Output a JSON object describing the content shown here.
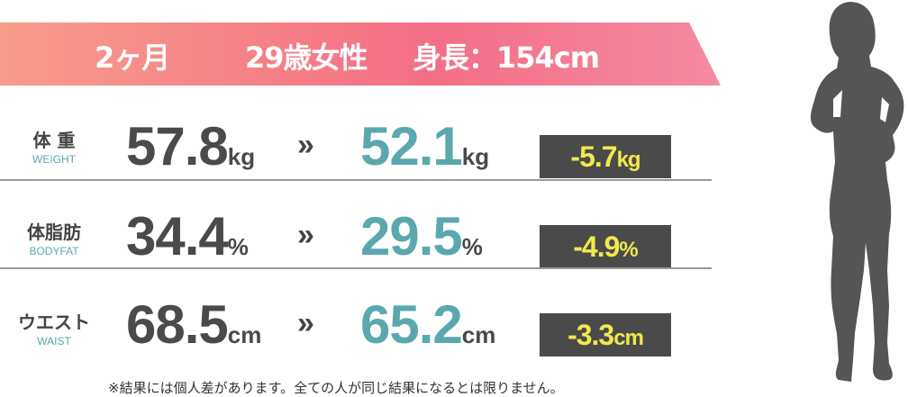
{
  "banner": {
    "period": "2ヶ月",
    "profile": "29歳女性",
    "height": "身長：154cm"
  },
  "rows": [
    {
      "label": "体 重",
      "label_en": "WEIGHT",
      "before": "57.8",
      "after": "52.1",
      "diff": "-5.7",
      "unit": "kg"
    },
    {
      "label": "体脂肪",
      "label_en": "BODYFAT",
      "before": "34.4",
      "after": "29.5",
      "diff": "-4.9",
      "unit": "%"
    },
    {
      "label": "ウエスト",
      "label_en": "WAIST",
      "before": "68.5",
      "after": "65.2",
      "diff": "-3.3",
      "unit": "cm"
    }
  ],
  "arrow": "»",
  "note": "※結果には個人差があります。全ての人が同じ結果になるとは限りません。",
  "colors": {
    "after": "#5aa8ad",
    "badge_bg": "#4a4a4a",
    "badge_text": "#f2e94e",
    "banner_start": "#f89c8b",
    "banner_end": "#f58aa0"
  }
}
